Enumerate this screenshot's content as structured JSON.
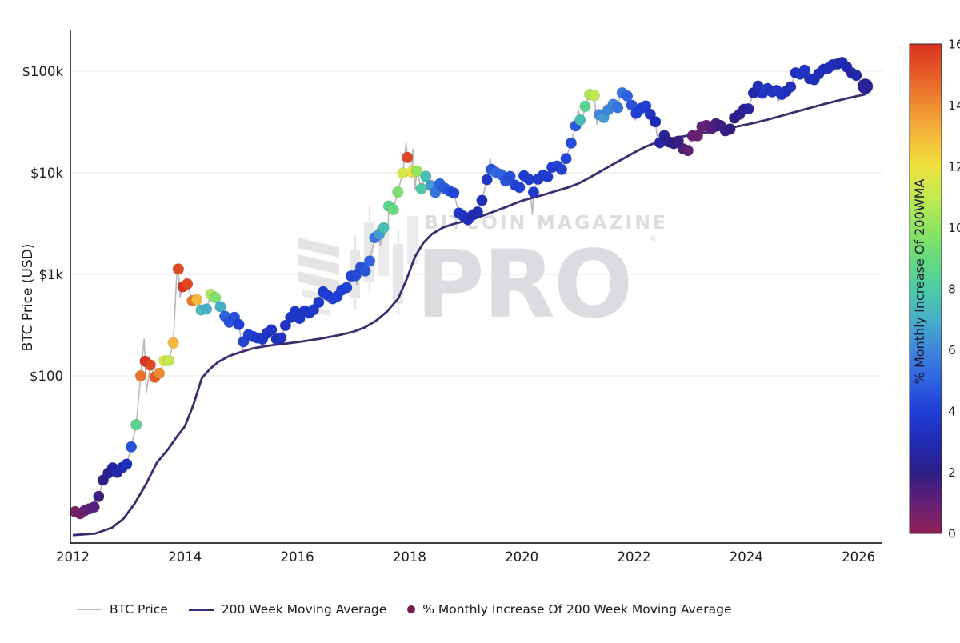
{
  "figure": {
    "ylabel": "BTC Price (USD)",
    "watermark": {
      "line1": "BITCOIN MAGAZINE",
      "line2": "PRO",
      "registered": "®"
    },
    "y_ticks": [
      {
        "label": "$100k",
        "value": 100000
      },
      {
        "label": "$10k",
        "value": 10000
      },
      {
        "label": "$1k",
        "value": 1000
      },
      {
        "label": "$100",
        "value": 100
      }
    ],
    "x_ticks": [
      "2012",
      "2014",
      "2016",
      "2018",
      "2020",
      "2022",
      "2024",
      "2026"
    ],
    "colorbar": {
      "label": "% Monthly Increase Of 200WMA",
      "ticks": [
        "0",
        "2",
        "4",
        "6",
        "8",
        "10",
        "12",
        "14",
        "16"
      ],
      "min": 0,
      "max": 16
    },
    "legend": [
      {
        "type": "line",
        "color": "#b9b9b9",
        "label": "BTC Price"
      },
      {
        "type": "line",
        "color": "#3d2b70",
        "label": "200 Week Moving Average"
      },
      {
        "type": "dot",
        "color": "#7c1d4f",
        "label": "% Monthly Increase Of 200 Week Moving Average"
      }
    ]
  },
  "chart_data": {
    "type": "scatter",
    "title": "",
    "xlabel": "",
    "ylabel": "BTC Price (USD)",
    "y_scale": "log",
    "x_range": [
      2012,
      2026.5
    ],
    "y_range": [
      2.3,
      250000
    ],
    "grid": "horizontal-only",
    "legend_position": "bottom",
    "colorbar_range": [
      0,
      16
    ],
    "colormap_stops": [
      [
        0,
        "#8f2057"
      ],
      [
        1,
        "#642076"
      ],
      [
        2,
        "#2d1d86"
      ],
      [
        3,
        "#202bb4"
      ],
      [
        4,
        "#1f3fd6"
      ],
      [
        5,
        "#2f62e0"
      ],
      [
        6,
        "#3f86dc"
      ],
      [
        7,
        "#46b0c8"
      ],
      [
        8,
        "#4ecba4"
      ],
      [
        9,
        "#66db7c"
      ],
      [
        10,
        "#8fe55f"
      ],
      [
        11,
        "#c2ea50"
      ],
      [
        12,
        "#efe13e"
      ],
      [
        13,
        "#f4b93a"
      ],
      [
        14,
        "#f08c30"
      ],
      [
        15,
        "#e65b28"
      ],
      [
        16,
        "#d93420"
      ]
    ],
    "monthly_points": [
      [
        2012.04,
        4.6,
        0.3
      ],
      [
        2012.13,
        4.4,
        0.7
      ],
      [
        2012.21,
        4.7,
        0.9
      ],
      [
        2012.29,
        4.9,
        1.1
      ],
      [
        2012.38,
        5.1,
        1.3
      ],
      [
        2012.46,
        6.5,
        1.7
      ],
      [
        2012.54,
        9.4,
        2.0
      ],
      [
        2012.63,
        11.0,
        2.3
      ],
      [
        2012.71,
        12.4,
        2.6
      ],
      [
        2012.79,
        11.2,
        2.8
      ],
      [
        2012.88,
        12.5,
        3.0
      ],
      [
        2012.96,
        13.5,
        3.2
      ],
      [
        2013.04,
        20,
        4.5
      ],
      [
        2013.13,
        33,
        8.5
      ],
      [
        2013.21,
        100,
        14.5
      ],
      [
        2013.29,
        139,
        16
      ],
      [
        2013.38,
        128,
        15.5
      ],
      [
        2013.46,
        97,
        15
      ],
      [
        2013.54,
        106,
        14
      ],
      [
        2013.63,
        141,
        11.5
      ],
      [
        2013.71,
        141,
        11
      ],
      [
        2013.79,
        211,
        13
      ],
      [
        2013.88,
        1130,
        15.5
      ],
      [
        2013.96,
        755,
        16
      ],
      [
        2014.04,
        805,
        15.5
      ],
      [
        2014.13,
        550,
        14.5
      ],
      [
        2014.21,
        565,
        13
      ],
      [
        2014.29,
        446,
        7.5
      ],
      [
        2014.38,
        455,
        7
      ],
      [
        2014.46,
        635,
        10.5
      ],
      [
        2014.54,
        590,
        9.5
      ],
      [
        2014.63,
        481,
        7
      ],
      [
        2014.71,
        387,
        5
      ],
      [
        2014.79,
        338,
        4.5
      ],
      [
        2014.88,
        378,
        4.5
      ],
      [
        2014.96,
        320,
        4
      ],
      [
        2015.04,
        217,
        4.2
      ],
      [
        2015.13,
        254,
        4
      ],
      [
        2015.21,
        244,
        3.9
      ],
      [
        2015.29,
        236,
        3.8
      ],
      [
        2015.38,
        230,
        3.6
      ],
      [
        2015.46,
        263,
        3.5
      ],
      [
        2015.54,
        284,
        3.5
      ],
      [
        2015.63,
        230,
        3.4
      ],
      [
        2015.71,
        236,
        3.4
      ],
      [
        2015.79,
        314,
        3.4
      ],
      [
        2015.88,
        377,
        3.5
      ],
      [
        2015.96,
        430,
        3.6
      ],
      [
        2016.04,
        368,
        3.6
      ],
      [
        2016.13,
        437,
        3.6
      ],
      [
        2016.21,
        416,
        3.6
      ],
      [
        2016.29,
        448,
        3.7
      ],
      [
        2016.38,
        531,
        3.7
      ],
      [
        2016.46,
        673,
        3.8
      ],
      [
        2016.54,
        624,
        3.9
      ],
      [
        2016.63,
        575,
        4
      ],
      [
        2016.71,
        609,
        4
      ],
      [
        2016.79,
        700,
        4
      ],
      [
        2016.88,
        742,
        4.1
      ],
      [
        2016.96,
        963,
        4.2
      ],
      [
        2017.04,
        970,
        4.3
      ],
      [
        2017.13,
        1180,
        4.5
      ],
      [
        2017.21,
        1080,
        4.7
      ],
      [
        2017.29,
        1350,
        5
      ],
      [
        2017.38,
        2300,
        5.5
      ],
      [
        2017.46,
        2480,
        6.5
      ],
      [
        2017.54,
        2875,
        7.5
      ],
      [
        2017.63,
        4703,
        8.5
      ],
      [
        2017.71,
        4360,
        9
      ],
      [
        2017.79,
        6468,
        9.5
      ],
      [
        2017.88,
        9916,
        11.5
      ],
      [
        2017.96,
        14156,
        15.5
      ],
      [
        2018.04,
        10221,
        12
      ],
      [
        2018.13,
        10397,
        10
      ],
      [
        2018.21,
        6973,
        8
      ],
      [
        2018.29,
        9240,
        7.5
      ],
      [
        2018.38,
        7494,
        6.5
      ],
      [
        2018.46,
        6404,
        5.5
      ],
      [
        2018.54,
        7780,
        5
      ],
      [
        2018.63,
        7037,
        4.8
      ],
      [
        2018.71,
        6625,
        4.5
      ],
      [
        2018.79,
        6317,
        4.2
      ],
      [
        2018.88,
        4017,
        3.8
      ],
      [
        2018.96,
        3747,
        3.4
      ],
      [
        2019.04,
        3457,
        3.2
      ],
      [
        2019.13,
        3854,
        3.1
      ],
      [
        2019.21,
        4105,
        3.1
      ],
      [
        2019.29,
        5350,
        3.2
      ],
      [
        2019.38,
        8574,
        3.6
      ],
      [
        2019.46,
        10817,
        4.6
      ],
      [
        2019.54,
        10085,
        5.2
      ],
      [
        2019.63,
        9630,
        5
      ],
      [
        2019.71,
        8293,
        4.6
      ],
      [
        2019.79,
        9199,
        4.4
      ],
      [
        2019.88,
        7569,
        4.2
      ],
      [
        2019.96,
        7193,
        4
      ],
      [
        2020.04,
        9350,
        3.9
      ],
      [
        2020.13,
        8599,
        3.8
      ],
      [
        2020.21,
        6438,
        3.7
      ],
      [
        2020.29,
        8658,
        3.7
      ],
      [
        2020.38,
        9461,
        3.8
      ],
      [
        2020.46,
        9137,
        3.8
      ],
      [
        2020.54,
        11351,
        3.9
      ],
      [
        2020.63,
        11655,
        4
      ],
      [
        2020.71,
        10784,
        4.1
      ],
      [
        2020.79,
        13797,
        4.2
      ],
      [
        2020.88,
        19625,
        4.4
      ],
      [
        2020.96,
        29002,
        4.8
      ],
      [
        2021.04,
        33114,
        7.5
      ],
      [
        2021.13,
        45137,
        8.5
      ],
      [
        2021.21,
        58919,
        10.5
      ],
      [
        2021.29,
        57750,
        11
      ],
      [
        2021.38,
        37333,
        6
      ],
      [
        2021.46,
        35041,
        6.5
      ],
      [
        2021.54,
        41626,
        6
      ],
      [
        2021.63,
        47167,
        6
      ],
      [
        2021.71,
        43791,
        5.5
      ],
      [
        2021.79,
        61319,
        5.5
      ],
      [
        2021.88,
        57006,
        5
      ],
      [
        2021.96,
        46307,
        4.5
      ],
      [
        2022.04,
        38483,
        4
      ],
      [
        2022.13,
        43193,
        4
      ],
      [
        2022.21,
        45539,
        4
      ],
      [
        2022.29,
        37714,
        3.5
      ],
      [
        2022.38,
        31792,
        3
      ],
      [
        2022.46,
        19785,
        2.6
      ],
      [
        2022.54,
        23307,
        2.4
      ],
      [
        2022.63,
        20050,
        2.2
      ],
      [
        2022.71,
        19432,
        2
      ],
      [
        2022.79,
        20490,
        1.8
      ],
      [
        2022.88,
        17168,
        1.4
      ],
      [
        2022.96,
        16547,
        1.1
      ],
      [
        2023.04,
        23139,
        0.9
      ],
      [
        2023.13,
        23147,
        0.9
      ],
      [
        2023.21,
        28478,
        1
      ],
      [
        2023.29,
        29268,
        1.1
      ],
      [
        2023.38,
        27219,
        1.3
      ],
      [
        2023.46,
        30477,
        1.5
      ],
      [
        2023.54,
        29230,
        1.7
      ],
      [
        2023.63,
        25932,
        1.8
      ],
      [
        2023.71,
        26967,
        1.9
      ],
      [
        2023.79,
        34668,
        2
      ],
      [
        2023.88,
        37718,
        2.2
      ],
      [
        2023.96,
        42265,
        2.4
      ],
      [
        2024.04,
        42580,
        2.5
      ],
      [
        2024.13,
        61198,
        2.8
      ],
      [
        2024.21,
        71333,
        3.2
      ],
      [
        2024.29,
        60636,
        3.4
      ],
      [
        2024.38,
        67491,
        3.5
      ],
      [
        2024.46,
        62678,
        3.5
      ],
      [
        2024.54,
        64619,
        3.5
      ],
      [
        2024.63,
        58969,
        3.4
      ],
      [
        2024.71,
        63329,
        3.3
      ],
      [
        2024.79,
        70215,
        3.3
      ],
      [
        2024.88,
        96449,
        3.4
      ],
      [
        2024.96,
        93429,
        3.5
      ],
      [
        2025.04,
        102405,
        3.5
      ],
      [
        2025.13,
        84349,
        3.4
      ],
      [
        2025.21,
        82548,
        3.2
      ],
      [
        2025.29,
        94207,
        3.2
      ],
      [
        2025.38,
        104598,
        3.2
      ],
      [
        2025.46,
        107135,
        3.2
      ],
      [
        2025.54,
        115758,
        3.2
      ],
      [
        2025.63,
        118000,
        3.1
      ],
      [
        2025.71,
        122000,
        3.1
      ],
      [
        2025.79,
        110000,
        3
      ],
      [
        2025.88,
        96000,
        2.8
      ],
      [
        2025.96,
        91000,
        2.7
      ]
    ],
    "latest_point": {
      "t": 2026.12,
      "price": 71000,
      "value": 2.4
    },
    "price_line_extra_points": [
      [
        2012.0,
        5.1
      ],
      [
        2013.27,
        230
      ],
      [
        2013.31,
        68
      ],
      [
        2013.86,
        1240
      ],
      [
        2013.91,
        600
      ],
      [
        2014.02,
        940
      ],
      [
        2015.03,
        170
      ],
      [
        2015.9,
        465
      ],
      [
        2016.45,
        770
      ],
      [
        2017.03,
        1130
      ],
      [
        2017.06,
        790
      ],
      [
        2017.44,
        2950
      ],
      [
        2017.48,
        1900
      ],
      [
        2017.62,
        2990
      ],
      [
        2017.94,
        19700
      ],
      [
        2018.0,
        12600
      ],
      [
        2018.06,
        17100
      ],
      [
        2018.1,
        6900
      ],
      [
        2019.44,
        13800
      ],
      [
        2020.19,
        3900
      ],
      [
        2021.01,
        41950
      ],
      [
        2021.07,
        29900
      ],
      [
        2021.24,
        64800
      ],
      [
        2021.34,
        30000
      ],
      [
        2021.78,
        67000
      ],
      [
        2022.02,
        33100
      ],
      [
        2022.44,
        17600
      ],
      [
        2022.86,
        15500
      ],
      [
        2024.19,
        73800
      ],
      [
        2024.56,
        49800
      ],
      [
        2024.94,
        106100
      ],
      [
        2025.23,
        76600
      ],
      [
        2025.56,
        123300
      ],
      [
        2025.76,
        126200
      ],
      [
        2025.81,
        107000
      ],
      [
        2026.04,
        78000
      ],
      [
        2026.08,
        66000
      ]
    ],
    "wma_line": [
      [
        2012.0,
        2.7
      ],
      [
        2012.4,
        2.8
      ],
      [
        2012.7,
        3.2
      ],
      [
        2012.9,
        3.9
      ],
      [
        2013.1,
        5.5
      ],
      [
        2013.3,
        8.5
      ],
      [
        2013.5,
        14
      ],
      [
        2013.7,
        19
      ],
      [
        2013.85,
        25
      ],
      [
        2014.0,
        32
      ],
      [
        2014.15,
        52
      ],
      [
        2014.3,
        95
      ],
      [
        2014.45,
        118
      ],
      [
        2014.6,
        138
      ],
      [
        2014.8,
        158
      ],
      [
        2015.0,
        172
      ],
      [
        2015.2,
        186
      ],
      [
        2015.4,
        195
      ],
      [
        2015.6,
        202
      ],
      [
        2015.8,
        208
      ],
      [
        2016.0,
        215
      ],
      [
        2016.2,
        223
      ],
      [
        2016.4,
        232
      ],
      [
        2016.6,
        243
      ],
      [
        2016.8,
        256
      ],
      [
        2017.0,
        272
      ],
      [
        2017.2,
        300
      ],
      [
        2017.4,
        348
      ],
      [
        2017.6,
        430
      ],
      [
        2017.8,
        580
      ],
      [
        2017.95,
        900
      ],
      [
        2018.1,
        1500
      ],
      [
        2018.25,
        2050
      ],
      [
        2018.4,
        2500
      ],
      [
        2018.6,
        2900
      ],
      [
        2018.8,
        3150
      ],
      [
        2019.0,
        3350
      ],
      [
        2019.2,
        3600
      ],
      [
        2019.4,
        3950
      ],
      [
        2019.6,
        4350
      ],
      [
        2019.8,
        4800
      ],
      [
        2020.0,
        5300
      ],
      [
        2020.2,
        5700
      ],
      [
        2020.4,
        6100
      ],
      [
        2020.6,
        6600
      ],
      [
        2020.8,
        7100
      ],
      [
        2021.0,
        7800
      ],
      [
        2021.2,
        8900
      ],
      [
        2021.4,
        10300
      ],
      [
        2021.6,
        11900
      ],
      [
        2021.8,
        13700
      ],
      [
        2022.0,
        15800
      ],
      [
        2022.2,
        18000
      ],
      [
        2022.4,
        19900
      ],
      [
        2022.6,
        21400
      ],
      [
        2022.8,
        22500
      ],
      [
        2023.0,
        23400
      ],
      [
        2023.2,
        24400
      ],
      [
        2023.4,
        25600
      ],
      [
        2023.6,
        26900
      ],
      [
        2023.8,
        28300
      ],
      [
        2024.0,
        29800
      ],
      [
        2024.2,
        31500
      ],
      [
        2024.4,
        33600
      ],
      [
        2024.6,
        36000
      ],
      [
        2024.8,
        38700
      ],
      [
        2025.0,
        41500
      ],
      [
        2025.2,
        44500
      ],
      [
        2025.4,
        47600
      ],
      [
        2025.6,
        50800
      ],
      [
        2025.8,
        54100
      ],
      [
        2026.0,
        57300
      ],
      [
        2026.14,
        59500
      ]
    ]
  }
}
